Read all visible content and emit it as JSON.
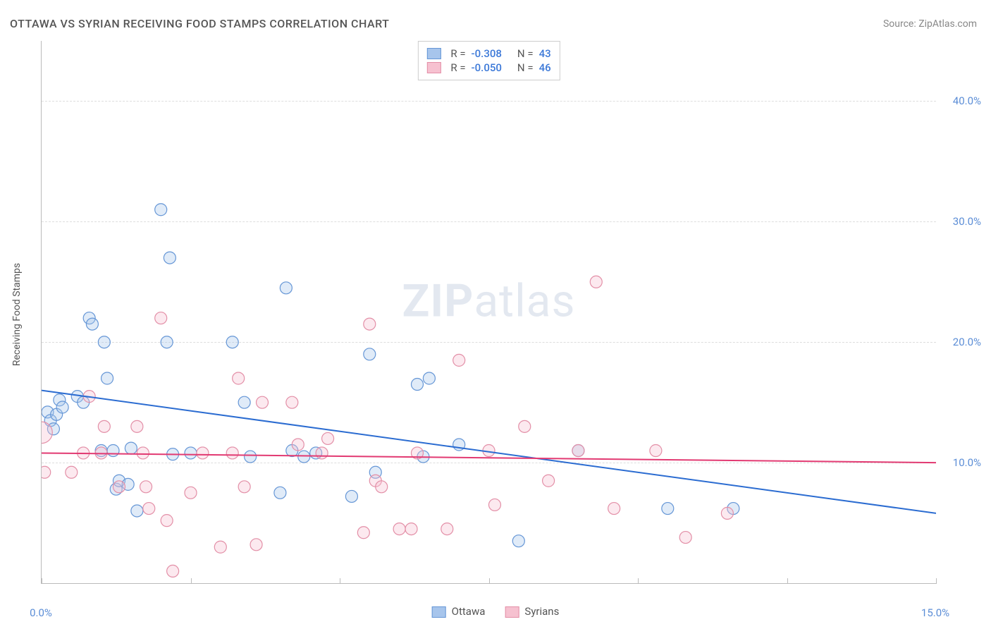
{
  "title": "OTTAWA VS SYRIAN RECEIVING FOOD STAMPS CORRELATION CHART",
  "source_label": "Source: ",
  "source_name": "ZipAtlas.com",
  "ylabel": "Receiving Food Stamps",
  "watermark_bold": "ZIP",
  "watermark_rest": "atlas",
  "chart": {
    "type": "scatter",
    "xlim": [
      0,
      15
    ],
    "ylim": [
      0,
      45
    ],
    "x_ticks": [
      0,
      2.5,
      5,
      7.5,
      10,
      12.5,
      15
    ],
    "x_tick_labels": {
      "0": "0.0%",
      "15": "15.0%"
    },
    "y_gridlines": [
      10,
      20,
      30,
      40
    ],
    "y_tick_labels": {
      "10": "10.0%",
      "20": "20.0%",
      "30": "30.0%",
      "40": "40.0%"
    },
    "background_color": "#ffffff",
    "grid_color": "#dddddd",
    "axis_color": "#bbbbbb",
    "tick_label_color": "#5b8dd6",
    "marker_radius": 8.5,
    "marker_stroke_width": 1.2,
    "marker_fill_opacity": 0.35,
    "trend_line_width": 2,
    "series": [
      {
        "name": "Ottawa",
        "color_stroke": "#6596d6",
        "color_fill": "#a7c5ec",
        "trend_color": "#2b6cd1",
        "R": "-0.308",
        "N": "43",
        "trend": {
          "x1": 0,
          "y1": 16.0,
          "x2": 15,
          "y2": 5.8
        },
        "points": [
          [
            0.1,
            14.2
          ],
          [
            0.15,
            13.5
          ],
          [
            0.2,
            12.8
          ],
          [
            0.25,
            14.0
          ],
          [
            0.3,
            15.2
          ],
          [
            0.35,
            14.6
          ],
          [
            0.6,
            15.5
          ],
          [
            0.7,
            15.0
          ],
          [
            0.8,
            22.0
          ],
          [
            0.85,
            21.5
          ],
          [
            1.0,
            11.0
          ],
          [
            1.05,
            20.0
          ],
          [
            1.1,
            17.0
          ],
          [
            1.2,
            11.0
          ],
          [
            1.25,
            7.8
          ],
          [
            1.3,
            8.5
          ],
          [
            1.45,
            8.2
          ],
          [
            1.5,
            11.2
          ],
          [
            1.6,
            6.0
          ],
          [
            2.0,
            31.0
          ],
          [
            2.1,
            20.0
          ],
          [
            2.15,
            27.0
          ],
          [
            2.2,
            10.7
          ],
          [
            2.5,
            10.8
          ],
          [
            3.2,
            20.0
          ],
          [
            3.4,
            15.0
          ],
          [
            3.5,
            10.5
          ],
          [
            4.0,
            7.5
          ],
          [
            4.1,
            24.5
          ],
          [
            4.2,
            11.0
          ],
          [
            4.4,
            10.5
          ],
          [
            4.6,
            10.8
          ],
          [
            5.2,
            7.2
          ],
          [
            5.5,
            19.0
          ],
          [
            5.6,
            9.2
          ],
          [
            6.3,
            16.5
          ],
          [
            6.4,
            10.5
          ],
          [
            6.5,
            17.0
          ],
          [
            7.0,
            11.5
          ],
          [
            8.0,
            3.5
          ],
          [
            9.0,
            11.0
          ],
          [
            10.5,
            6.2
          ],
          [
            11.6,
            6.2
          ]
        ]
      },
      {
        "name": "Syrians",
        "color_stroke": "#e38fa7",
        "color_fill": "#f6c1d0",
        "trend_color": "#e23a72",
        "R": "-0.050",
        "N": "46",
        "trend": {
          "x1": 0,
          "y1": 10.8,
          "x2": 15,
          "y2": 10.0
        },
        "points": [
          [
            0.0,
            12.5
          ],
          [
            0.05,
            9.2
          ],
          [
            0.5,
            9.2
          ],
          [
            0.7,
            10.8
          ],
          [
            0.8,
            15.5
          ],
          [
            1.0,
            10.8
          ],
          [
            1.05,
            13.0
          ],
          [
            1.3,
            8.0
          ],
          [
            1.6,
            13.0
          ],
          [
            1.7,
            10.8
          ],
          [
            1.75,
            8.0
          ],
          [
            1.8,
            6.2
          ],
          [
            2.0,
            22.0
          ],
          [
            2.1,
            5.2
          ],
          [
            2.2,
            1.0
          ],
          [
            2.5,
            7.5
          ],
          [
            2.7,
            10.8
          ],
          [
            3.0,
            3.0
          ],
          [
            3.2,
            10.8
          ],
          [
            3.3,
            17.0
          ],
          [
            3.4,
            8.0
          ],
          [
            3.6,
            3.2
          ],
          [
            3.7,
            15.0
          ],
          [
            4.2,
            15.0
          ],
          [
            4.3,
            11.5
          ],
          [
            4.7,
            10.8
          ],
          [
            4.8,
            12.0
          ],
          [
            5.4,
            4.2
          ],
          [
            5.5,
            21.5
          ],
          [
            5.6,
            8.5
          ],
          [
            5.7,
            8.0
          ],
          [
            6.0,
            4.5
          ],
          [
            6.2,
            4.5
          ],
          [
            6.3,
            10.8
          ],
          [
            6.8,
            4.5
          ],
          [
            7.0,
            18.5
          ],
          [
            7.5,
            11.0
          ],
          [
            7.6,
            6.5
          ],
          [
            8.1,
            13.0
          ],
          [
            8.5,
            8.5
          ],
          [
            9.0,
            11.0
          ],
          [
            9.3,
            25.0
          ],
          [
            9.6,
            6.2
          ],
          [
            10.3,
            11.0
          ],
          [
            10.8,
            3.8
          ],
          [
            11.5,
            5.8
          ]
        ]
      }
    ]
  },
  "legend_bottom": [
    {
      "label": "Ottawa",
      "stroke": "#6596d6",
      "fill": "#a7c5ec"
    },
    {
      "label": "Syrians",
      "stroke": "#e38fa7",
      "fill": "#f6c1d0"
    }
  ]
}
